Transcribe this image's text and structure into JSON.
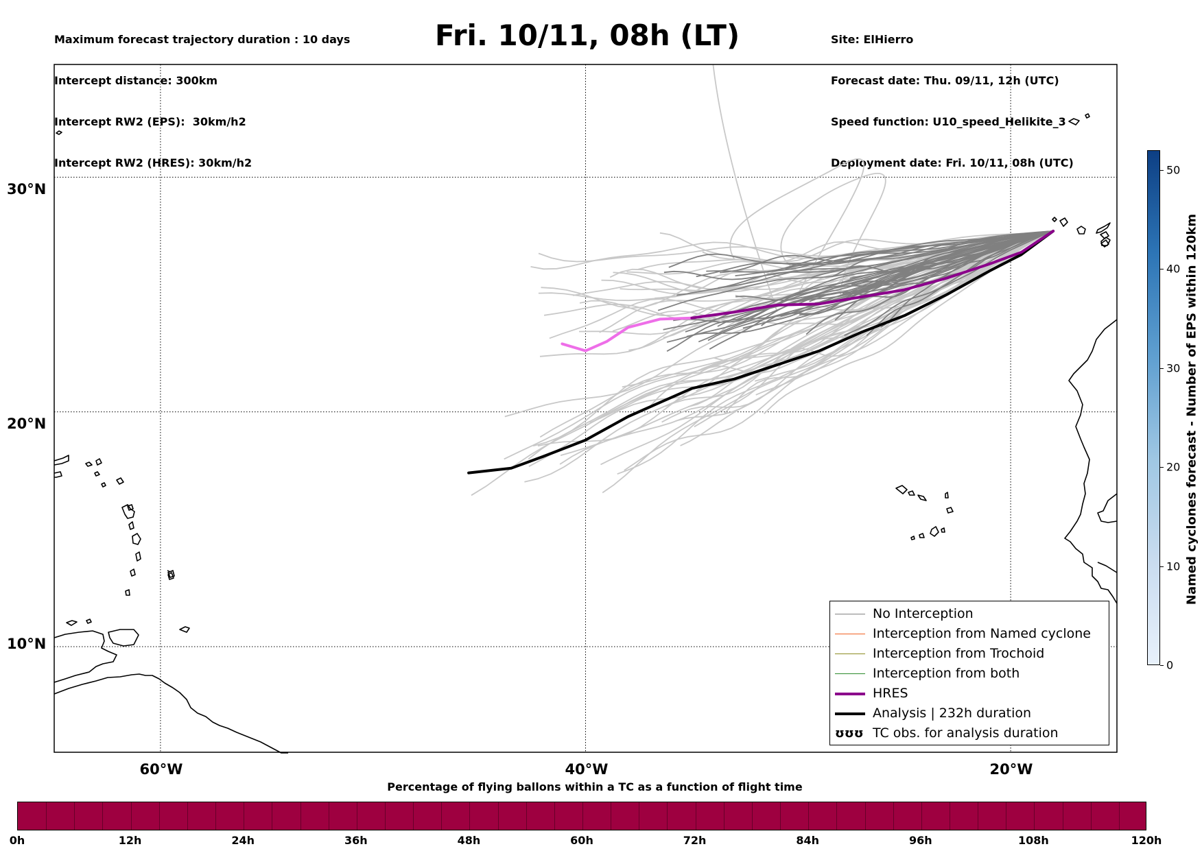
{
  "header": {
    "title": "Fri. 10/11, 08h (LT)",
    "left_lines": [
      "Maximum forecast trajectory duration : 10 days",
      "Intercept distance: 300km",
      "Intercept RW2 (EPS):  30km/h2",
      "Intercept RW2 (HRES): 30km/h2"
    ],
    "right_lines": [
      "Site: ElHierro",
      "Forecast date: Thu. 09/11, 12h (UTC)",
      "Speed function: U10_speed_Helikite_3",
      "Deployment date: Fri. 10/11, 08h (UTC)"
    ]
  },
  "map": {
    "extent": {
      "lon_min": -65,
      "lon_max": -15,
      "lat_min": 5.5,
      "lat_max": 34.8
    },
    "lat_labels": [
      "30°N",
      "20°N",
      "10°N"
    ],
    "lon_labels": [
      "60°W",
      "40°W",
      "20°W"
    ],
    "colors": {
      "no_interception": "#808080",
      "named_cyclone": "#f06020",
      "trochoid": "#8a8a20",
      "both": "#2a8a2a",
      "hres": "#8b008b",
      "hres_extension": "#ee6ee8",
      "analysis": "#000000",
      "distant_member": "#c8c8c8"
    }
  },
  "legend": {
    "items": [
      {
        "label": "No Interception",
        "style": "thin-gray"
      },
      {
        "label": "Interception from Named cyclone",
        "style": "thin-orange"
      },
      {
        "label": "Interception from Trochoid",
        "style": "thin-olive"
      },
      {
        "label": "Interception from both",
        "style": "thin-green"
      },
      {
        "label": "HRES",
        "style": "thick-purple"
      },
      {
        "label": "Analysis | 232h duration",
        "style": "thick-black"
      },
      {
        "label": "TC obs. for analysis duration",
        "style": "tc-symbol",
        "icon": "ʊʊʊ"
      }
    ]
  },
  "colorbar": {
    "label": "Named cyclones forecast - Number of EPS within 120km",
    "ticks": [
      "0",
      "10",
      "20",
      "30",
      "40",
      "50"
    ],
    "range": [
      0,
      52
    ]
  },
  "bottom_bar": {
    "caption": "Percentage of flying ballons within a TC as a function of flight time",
    "color": "#9e0040",
    "ticks": [
      "0h",
      "12h",
      "24h",
      "36h",
      "48h",
      "60h",
      "72h",
      "84h",
      "96h",
      "108h",
      "120h"
    ]
  },
  "chart_data": {
    "type": "line",
    "x_unit": "degrees longitude (negative = West)",
    "y_unit": "degrees latitude (N)",
    "origin": {
      "lon": -18.0,
      "lat": 27.7
    },
    "series": [
      {
        "name": "HRES",
        "lon": [
          -18.0,
          -19.5,
          -21.0,
          -23.0,
          -25.0,
          -27.0,
          -29.0,
          -31.0,
          -33.0,
          -35.0,
          -36.5,
          -38.0,
          -39.0,
          -40.0,
          -41.1
        ],
        "lat": [
          27.7,
          26.8,
          26.3,
          25.7,
          25.2,
          24.9,
          24.6,
          24.55,
          24.25,
          24.0,
          23.95,
          23.6,
          23.0,
          22.6,
          22.9
        ]
      },
      {
        "name": "Analysis | 232h duration",
        "lon": [
          -18.0,
          -19.5,
          -21.0,
          -23.0,
          -25.0,
          -27.0,
          -29.0,
          -31.0,
          -33.0,
          -35.0,
          -36.5,
          -38.0,
          -40.0,
          -42.0,
          -43.5,
          -45.5
        ],
        "lat": [
          27.7,
          26.7,
          26.0,
          25.0,
          24.1,
          23.4,
          22.6,
          22.0,
          21.4,
          21.0,
          20.4,
          19.8,
          18.8,
          18.1,
          17.6,
          17.4
        ]
      }
    ]
  }
}
